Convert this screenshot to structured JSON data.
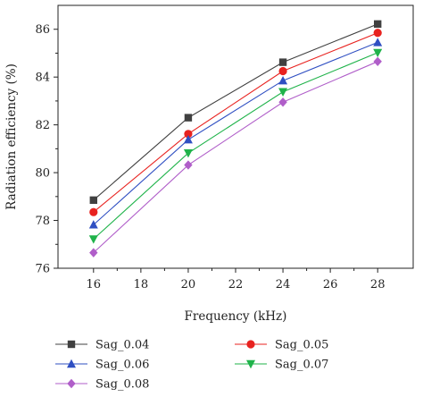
{
  "chart_data": {
    "type": "line",
    "xlabel": "Frequency (kHz)",
    "ylabel": "Radiation efficiency (%)",
    "xlim": [
      14.5,
      29.5
    ],
    "ylim": [
      76,
      87
    ],
    "xticks": [
      16,
      18,
      20,
      22,
      24,
      26,
      28
    ],
    "yticks": [
      76,
      78,
      80,
      82,
      84,
      86
    ],
    "grid": false,
    "legend_position": "bottom",
    "x": [
      16,
      20,
      24,
      28
    ],
    "series": [
      {
        "name": "Sag_0.04",
        "values": [
          78.85,
          82.3,
          84.62,
          86.22
        ],
        "color": "#404040",
        "marker": "square"
      },
      {
        "name": "Sag_0.05",
        "values": [
          78.35,
          81.62,
          84.25,
          85.85
        ],
        "color": "#e8221f",
        "marker": "circle"
      },
      {
        "name": "Sag_0.06",
        "values": [
          77.82,
          81.38,
          83.85,
          85.45
        ],
        "color": "#2f4fc2",
        "marker": "triangle-up"
      },
      {
        "name": "Sag_0.07",
        "values": [
          77.22,
          80.82,
          83.38,
          85.02
        ],
        "color": "#1fb34a",
        "marker": "triangle-down"
      },
      {
        "name": "Sag_0.08",
        "values": [
          76.65,
          80.32,
          82.95,
          84.65
        ],
        "color": "#b05ec9",
        "marker": "diamond"
      }
    ]
  }
}
